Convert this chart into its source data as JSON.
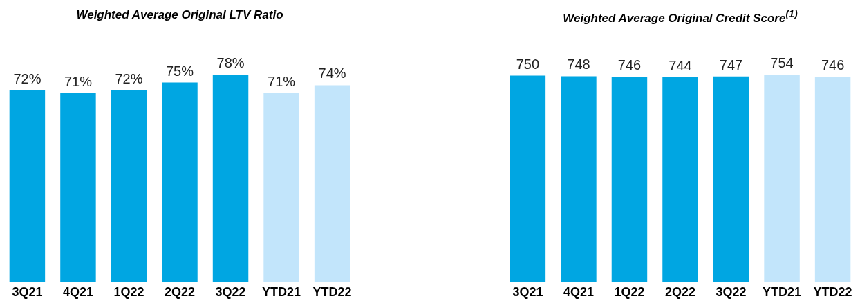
{
  "chart_data": [
    {
      "type": "bar",
      "title": "Weighted Average Original LTV Ratio",
      "categories": [
        "3Q21",
        "4Q21",
        "1Q22",
        "2Q22",
        "3Q22",
        "YTD21",
        "YTD22"
      ],
      "values": [
        72,
        71,
        72,
        75,
        78,
        71,
        74
      ],
      "value_labels": [
        "72%",
        "71%",
        "72%",
        "75%",
        "78%",
        "71%",
        "74%"
      ],
      "colors": [
        "#00a6e2",
        "#00a6e2",
        "#00a6e2",
        "#00a6e2",
        "#00a6e2",
        "#c2e5fb",
        "#c2e5fb"
      ]
    },
    {
      "type": "bar",
      "title": "Weighted Average Original Credit Score$^{(1)}$",
      "categories": [
        "3Q21",
        "4Q21",
        "1Q22",
        "2Q22",
        "3Q22",
        "YTD21",
        "YTD22"
      ],
      "values": [
        750,
        748,
        746,
        744,
        747,
        754,
        746
      ],
      "data_labels": true,
      "colors": [
        "#00a6e2",
        "#00a6e2",
        "#00a6e2",
        "#00a6e2",
        "#00a6e2",
        "#c2e5fb",
        "#c2e5fb"
      ]
    }
  ]
}
